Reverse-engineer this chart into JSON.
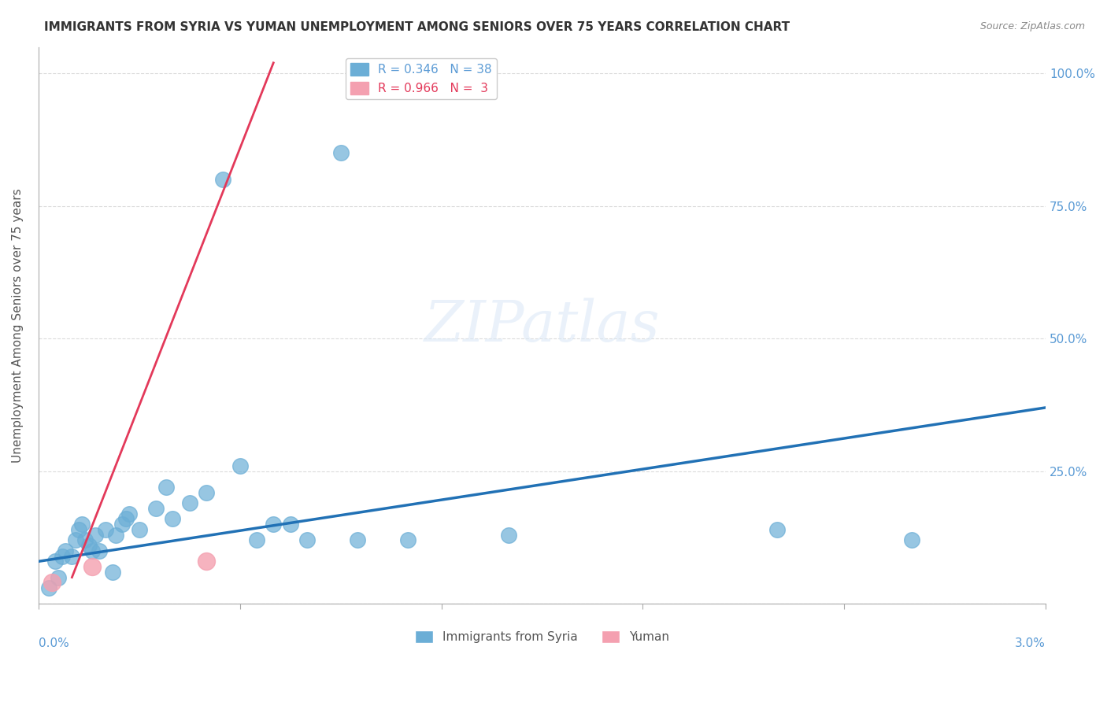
{
  "title": "IMMIGRANTS FROM SYRIA VS YUMAN UNEMPLOYMENT AMONG SENIORS OVER 75 YEARS CORRELATION CHART",
  "source": "Source: ZipAtlas.com",
  "ylabel": "Unemployment Among Seniors over 75 years",
  "yticks": [
    0.0,
    0.25,
    0.5,
    0.75,
    1.0
  ],
  "ytick_labels": [
    "",
    "25.0%",
    "50.0%",
    "75.0%",
    "100.0%"
  ],
  "xlim": [
    0.0,
    0.03
  ],
  "ylim": [
    0.0,
    1.05
  ],
  "legend1_R": "0.346",
  "legend1_N": "38",
  "legend2_R": "0.966",
  "legend2_N": "3",
  "watermark": "ZIPatlas",
  "blue_color": "#6baed6",
  "blue_line_color": "#2171b5",
  "pink_color": "#f4a0b0",
  "pink_line_color": "#e3395a",
  "blue_points_x": [
    0.0003,
    0.0005,
    0.0006,
    0.0007,
    0.0008,
    0.001,
    0.0011,
    0.0012,
    0.0013,
    0.0014,
    0.0015,
    0.0016,
    0.0017,
    0.0018,
    0.002,
    0.0022,
    0.0023,
    0.0025,
    0.0026,
    0.0027,
    0.003,
    0.0035,
    0.0038,
    0.004,
    0.0045,
    0.005,
    0.0055,
    0.006,
    0.0065,
    0.007,
    0.0075,
    0.008,
    0.009,
    0.0095,
    0.011,
    0.014,
    0.022,
    0.026
  ],
  "blue_points_y": [
    0.03,
    0.08,
    0.05,
    0.09,
    0.1,
    0.09,
    0.12,
    0.14,
    0.15,
    0.12,
    0.11,
    0.1,
    0.13,
    0.1,
    0.14,
    0.06,
    0.13,
    0.15,
    0.16,
    0.17,
    0.14,
    0.18,
    0.22,
    0.16,
    0.19,
    0.21,
    0.8,
    0.26,
    0.12,
    0.15,
    0.15,
    0.12,
    0.85,
    0.12,
    0.12,
    0.13,
    0.14,
    0.12
  ],
  "pink_points_x": [
    0.0004,
    0.0016,
    0.005
  ],
  "pink_points_y": [
    0.04,
    0.07,
    0.08
  ],
  "blue_trend_x": [
    0.0,
    0.03
  ],
  "blue_trend_y": [
    0.08,
    0.37
  ],
  "pink_trend_x": [
    0.001,
    0.007
  ],
  "pink_trend_y": [
    0.05,
    1.02
  ]
}
